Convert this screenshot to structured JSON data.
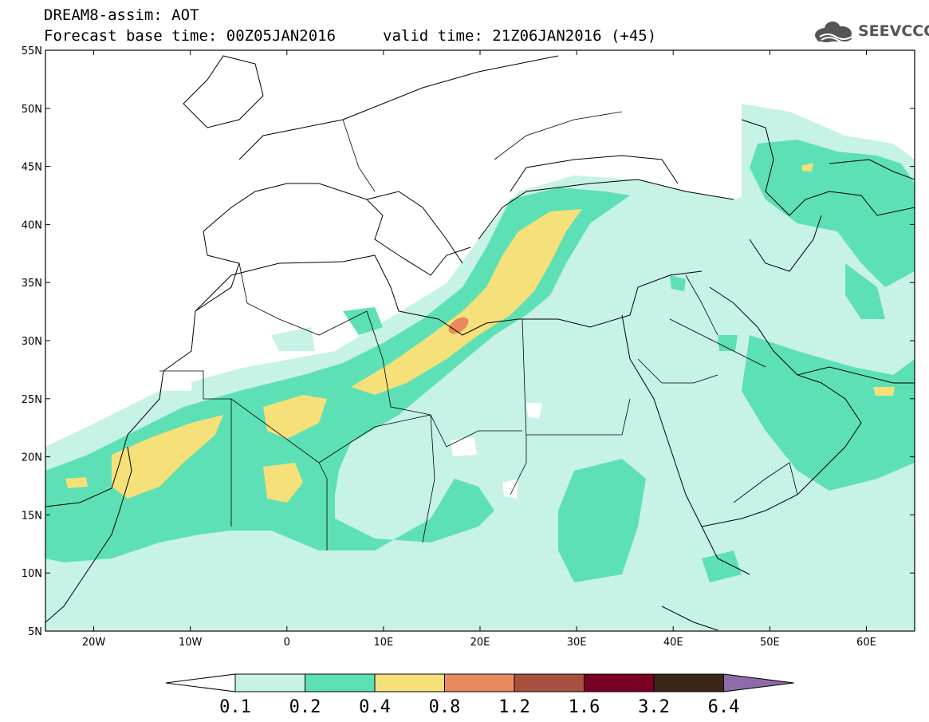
{
  "header": {
    "line1": "DREAM8-assim: AOT",
    "line2": "Forecast base time: 00Z05JAN2016",
    "valid": "valid time: 21Z06JAN2016 (+45)",
    "logo": "SEEVCCC",
    "logo_icon": "cloud-icon"
  },
  "map": {
    "lon_range": [
      -25,
      65
    ],
    "lat_range": [
      5,
      55
    ],
    "lat_ticks": [
      {
        "value": 55,
        "label": "55N"
      },
      {
        "value": 50,
        "label": "50N"
      },
      {
        "value": 45,
        "label": "45N"
      },
      {
        "value": 40,
        "label": "40N"
      },
      {
        "value": 35,
        "label": "35N"
      },
      {
        "value": 30,
        "label": "30N"
      },
      {
        "value": 25,
        "label": "25N"
      },
      {
        "value": 20,
        "label": "20N"
      },
      {
        "value": 15,
        "label": "15N"
      },
      {
        "value": 10,
        "label": "10N"
      },
      {
        "value": 5,
        "label": "5N"
      }
    ],
    "lon_ticks": [
      {
        "value": -20,
        "label": "20W"
      },
      {
        "value": -10,
        "label": "10W"
      },
      {
        "value": 0,
        "label": "0"
      },
      {
        "value": 10,
        "label": "10E"
      },
      {
        "value": 20,
        "label": "20E"
      },
      {
        "value": 30,
        "label": "30E"
      },
      {
        "value": 40,
        "label": "40E"
      },
      {
        "value": 50,
        "label": "50E"
      },
      {
        "value": 60,
        "label": "60E"
      }
    ]
  },
  "colorbar": {
    "labels": [
      "0.1",
      "0.2",
      "0.4",
      "0.8",
      "1.2",
      "1.6",
      "3.2",
      "6.4"
    ],
    "colors": [
      "#ffffff",
      "#c7f2e6",
      "#5de0b5",
      "#f5e07a",
      "#e88a5e",
      "#a85040",
      "#7a0024",
      "#3b2418",
      "#8e6aa8"
    ]
  }
}
